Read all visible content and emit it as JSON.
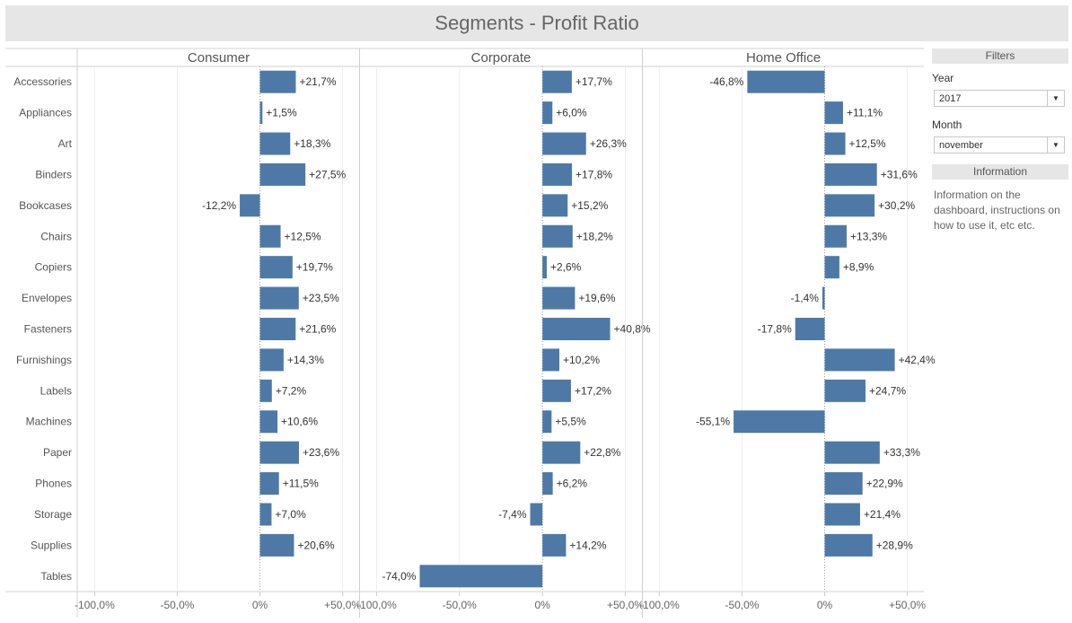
{
  "title": "Segments - Profit Ratio",
  "filters": {
    "header": "Filters",
    "year_label": "Year",
    "year_value": "2017",
    "month_label": "Month",
    "month_value": "november"
  },
  "information": {
    "header": "Information",
    "text": "Information on the dashboard, instructions on how to use it, etc etc."
  },
  "colors": {
    "bar": "#4e79a7",
    "header_bg": "#e6e6e6"
  },
  "chart_data": {
    "type": "bar",
    "orientation": "horizontal",
    "categories": [
      "Accessories",
      "Appliances",
      "Art",
      "Binders",
      "Bookcases",
      "Chairs",
      "Copiers",
      "Envelopes",
      "Fasteners",
      "Furnishings",
      "Labels",
      "Machines",
      "Paper",
      "Phones",
      "Storage",
      "Supplies",
      "Tables"
    ],
    "series": [
      {
        "name": "Consumer",
        "values": [
          21.7,
          1.5,
          18.3,
          27.5,
          -12.2,
          12.5,
          19.7,
          23.5,
          21.6,
          14.3,
          7.2,
          10.6,
          23.6,
          11.5,
          7.0,
          20.6,
          null
        ],
        "labels": [
          "+21,7%",
          "+1,5%",
          "+18,3%",
          "+27,5%",
          "-12,2%",
          "+12,5%",
          "+19,7%",
          "+23,5%",
          "+21,6%",
          "+14,3%",
          "+7,2%",
          "+10,6%",
          "+23,6%",
          "+11,5%",
          "+7,0%",
          "+20,6%",
          ""
        ]
      },
      {
        "name": "Corporate",
        "values": [
          17.7,
          6.0,
          26.3,
          17.8,
          15.2,
          18.2,
          2.6,
          19.6,
          40.8,
          10.2,
          17.2,
          5.5,
          22.8,
          6.2,
          -7.4,
          14.2,
          -74.0
        ],
        "labels": [
          "+17,7%",
          "+6,0%",
          "+26,3%",
          "+17,8%",
          "+15,2%",
          "+18,2%",
          "+2,6%",
          "+19,6%",
          "+40,8%",
          "+10,2%",
          "+17,2%",
          "+5,5%",
          "+22,8%",
          "+6,2%",
          "-7,4%",
          "+14,2%",
          "-74,0%"
        ]
      },
      {
        "name": "Home Office",
        "values": [
          -46.8,
          11.1,
          12.5,
          31.6,
          30.2,
          13.3,
          8.9,
          -1.4,
          -17.8,
          42.4,
          24.7,
          -55.1,
          33.3,
          22.9,
          21.4,
          28.9,
          null
        ],
        "labels": [
          "-46,8%",
          "+11,1%",
          "+12,5%",
          "+31,6%",
          "+30,2%",
          "+13,3%",
          "+8,9%",
          "-1,4%",
          "-17,8%",
          "+42,4%",
          "+24,7%",
          "-55,1%",
          "+33,3%",
          "+22,9%",
          "+21,4%",
          "+28,9%",
          ""
        ]
      }
    ],
    "xlim": [
      -110,
      60
    ],
    "xticks": [
      -100,
      -50,
      0,
      50
    ],
    "xtick_labels": [
      "-100,0%",
      "-50,0%",
      "0%",
      "+50,0%"
    ],
    "xlabel": "",
    "ylabel": "",
    "grid": true
  }
}
